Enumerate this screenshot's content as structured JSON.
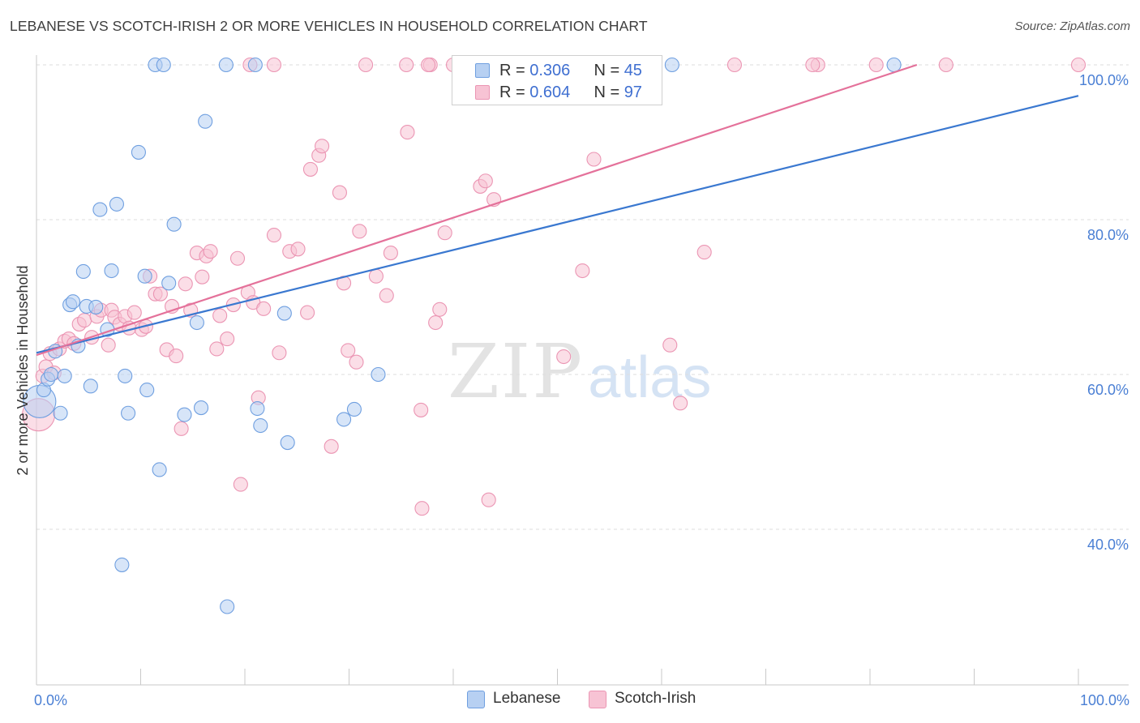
{
  "header": {
    "title": "LEBANESE VS SCOTCH-IRISH 2 OR MORE VEHICLES IN HOUSEHOLD CORRELATION CHART",
    "source": "Source: ZipAtlas.com"
  },
  "watermark": {
    "zip": "ZIP",
    "atlas": "atlas"
  },
  "legend_top": {
    "rows": [
      {
        "r_label": "R = ",
        "r_value": "0.306",
        "n_label": "N = ",
        "n_value": "45"
      },
      {
        "r_label": "R = ",
        "r_value": "0.604",
        "n_label": "N = ",
        "n_value": "97"
      }
    ]
  },
  "legend_bottom": {
    "items": [
      "Lebanese",
      "Scotch-Irish"
    ]
  },
  "colors": {
    "blue_fill": "#b7d0f2",
    "blue_stroke": "#6f9fe0",
    "blue_line": "#3a78d0",
    "pink_fill": "#f7c3d4",
    "pink_stroke": "#eb95b3",
    "pink_line": "#e4719a",
    "tick_text": "#4a7fd4",
    "grid": "#dedede"
  },
  "chart_data": {
    "type": "scatter",
    "title": "LEBANESE VS SCOTCH-IRISH 2 OR MORE VEHICLES IN HOUSEHOLD CORRELATION CHART",
    "xlabel": "",
    "ylabel": "2 or more Vehicles in Household",
    "xlim": [
      0,
      100
    ],
    "ylim": [
      20,
      102
    ],
    "x_tick_labels": [
      "0.0%",
      "100.0%"
    ],
    "y_ticks": [
      40,
      60,
      80,
      100
    ],
    "y_tick_labels": [
      "40.0%",
      "60.0%",
      "80.0%",
      "100.0%"
    ],
    "legend_position": "top-center",
    "series": [
      {
        "name": "Lebanese",
        "r": 0.306,
        "n": 45,
        "trend": {
          "x": [
            0,
            100
          ],
          "y": [
            62.8,
            96.0
          ]
        },
        "points": [
          [
            0.3,
            56.5,
            "large"
          ],
          [
            0.7,
            58.0
          ],
          [
            1.1,
            59.4
          ],
          [
            1.4,
            60.0
          ],
          [
            1.8,
            63.0
          ],
          [
            2.3,
            55.0
          ],
          [
            2.7,
            59.8
          ],
          [
            3.2,
            69.0
          ],
          [
            3.5,
            69.4
          ],
          [
            4.0,
            63.7
          ],
          [
            4.5,
            73.3
          ],
          [
            4.8,
            68.8
          ],
          [
            5.2,
            58.5
          ],
          [
            5.7,
            68.7
          ],
          [
            6.1,
            81.3
          ],
          [
            6.8,
            65.8
          ],
          [
            7.2,
            73.4
          ],
          [
            7.7,
            82.0
          ],
          [
            8.5,
            59.8
          ],
          [
            8.8,
            55.0
          ],
          [
            9.8,
            88.7
          ],
          [
            10.4,
            72.7
          ],
          [
            10.6,
            58.0
          ],
          [
            11.4,
            100.0
          ],
          [
            11.8,
            47.7
          ],
          [
            12.2,
            100.0
          ],
          [
            12.7,
            71.8
          ],
          [
            13.2,
            79.4
          ],
          [
            14.2,
            54.8
          ],
          [
            15.4,
            66.7
          ],
          [
            15.8,
            55.7
          ],
          [
            16.2,
            92.7
          ],
          [
            18.2,
            100.0
          ],
          [
            18.3,
            30.0
          ],
          [
            21.2,
            55.6
          ],
          [
            21.5,
            53.4
          ],
          [
            23.8,
            67.9
          ],
          [
            24.1,
            51.2
          ],
          [
            8.2,
            35.4
          ],
          [
            29.5,
            54.2
          ],
          [
            30.5,
            55.5
          ],
          [
            32.8,
            60.0
          ],
          [
            61.0,
            100.0
          ],
          [
            82.3,
            100.0
          ],
          [
            21.0,
            100.0
          ]
        ]
      },
      {
        "name": "Scotch-Irish",
        "r": 0.604,
        "n": 97,
        "trend": {
          "x": [
            0,
            84.5
          ],
          "y": [
            62.5,
            100.0
          ]
        },
        "points": [
          [
            0.2,
            54.8,
            "large"
          ],
          [
            0.6,
            59.8
          ],
          [
            0.9,
            61.0
          ],
          [
            1.3,
            62.7
          ],
          [
            1.7,
            60.2
          ],
          [
            2.2,
            63.3
          ],
          [
            2.7,
            64.3
          ],
          [
            3.1,
            64.6
          ],
          [
            3.6,
            64.0
          ],
          [
            4.1,
            66.5
          ],
          [
            4.6,
            67.0
          ],
          [
            5.3,
            64.8
          ],
          [
            5.8,
            67.5
          ],
          [
            6.2,
            68.3
          ],
          [
            6.9,
            63.8
          ],
          [
            7.2,
            68.3
          ],
          [
            7.5,
            67.4
          ],
          [
            8.0,
            66.5
          ],
          [
            8.5,
            67.5
          ],
          [
            8.9,
            66.0
          ],
          [
            9.4,
            68.0
          ],
          [
            10.1,
            65.8
          ],
          [
            10.5,
            66.2
          ],
          [
            10.9,
            72.7
          ],
          [
            11.4,
            70.4
          ],
          [
            11.9,
            70.4
          ],
          [
            12.5,
            63.2
          ],
          [
            13.0,
            68.8
          ],
          [
            13.4,
            62.4
          ],
          [
            13.9,
            53.0
          ],
          [
            14.3,
            71.7
          ],
          [
            14.8,
            68.3
          ],
          [
            15.4,
            75.7
          ],
          [
            15.9,
            72.6
          ],
          [
            16.3,
            75.3
          ],
          [
            16.7,
            75.9
          ],
          [
            17.3,
            63.3
          ],
          [
            17.6,
            67.6
          ],
          [
            18.3,
            64.6
          ],
          [
            18.9,
            69.0
          ],
          [
            19.3,
            75.0
          ],
          [
            19.6,
            45.8
          ],
          [
            20.3,
            70.6
          ],
          [
            20.8,
            69.3
          ],
          [
            21.3,
            57.0
          ],
          [
            21.8,
            68.5
          ],
          [
            22.8,
            78.0
          ],
          [
            23.3,
            62.8
          ],
          [
            24.3,
            75.9
          ],
          [
            25.1,
            76.2
          ],
          [
            26.0,
            68.0
          ],
          [
            26.3,
            86.5
          ],
          [
            27.1,
            88.3
          ],
          [
            27.4,
            89.5
          ],
          [
            28.3,
            50.7
          ],
          [
            29.1,
            83.5
          ],
          [
            29.5,
            71.8
          ],
          [
            29.9,
            63.1
          ],
          [
            30.7,
            61.6
          ],
          [
            31.0,
            78.5
          ],
          [
            32.6,
            72.7
          ],
          [
            33.6,
            70.2
          ],
          [
            34.0,
            75.7
          ],
          [
            35.6,
            91.3
          ],
          [
            36.9,
            55.4
          ],
          [
            37.0,
            42.7
          ],
          [
            37.8,
            100.0
          ],
          [
            38.3,
            66.7
          ],
          [
            38.7,
            68.4
          ],
          [
            39.2,
            78.3
          ],
          [
            42.6,
            84.3
          ],
          [
            43.1,
            85.0
          ],
          [
            43.9,
            82.6
          ],
          [
            43.4,
            43.8
          ],
          [
            50.6,
            62.3
          ],
          [
            52.4,
            73.4
          ],
          [
            53.5,
            87.8
          ],
          [
            57.6,
            100.0
          ],
          [
            60.8,
            63.8
          ],
          [
            61.8,
            56.3
          ],
          [
            64.1,
            75.8
          ],
          [
            67.0,
            100.0
          ],
          [
            75.0,
            100.0
          ],
          [
            80.6,
            100.0
          ],
          [
            87.3,
            100.0
          ],
          [
            100.0,
            100.0
          ],
          [
            22.8,
            100.0
          ],
          [
            31.6,
            100.0
          ],
          [
            35.5,
            100.0
          ],
          [
            37.6,
            100.0
          ],
          [
            40.0,
            100.0
          ],
          [
            40.8,
            100.0
          ],
          [
            45.0,
            100.0
          ],
          [
            52.0,
            100.0
          ],
          [
            74.5,
            100.0
          ],
          [
            53.0,
            100.0
          ],
          [
            20.5,
            100.0
          ]
        ]
      }
    ]
  }
}
